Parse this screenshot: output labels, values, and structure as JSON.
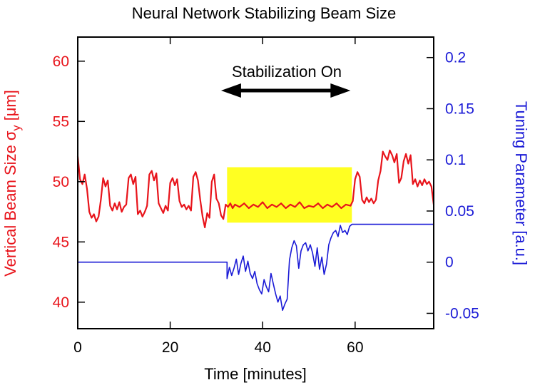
{
  "chart_data": {
    "type": "line",
    "title": "Neural Network Stabilizing Beam Size",
    "xlabel": "Time [minutes]",
    "ylabel_left": "Vertical Beam Size σ",
    "ylabel_left_sub": "y",
    "ylabel_left_unit": " [μm]",
    "ylabel_right": "Tuning Parameter [a.u.]",
    "xlim": [
      0,
      77
    ],
    "ylim_left": [
      37.8,
      62
    ],
    "ylim_right": [
      -0.065,
      0.22
    ],
    "x_ticks": [
      0,
      20,
      40,
      60
    ],
    "x_tick_labels": [
      "0",
      "20",
      "40",
      "60"
    ],
    "y_left_ticks": [
      40,
      45,
      50,
      55,
      60
    ],
    "y_left_tick_labels": [
      "40",
      "45",
      "50",
      "55",
      "60"
    ],
    "y_right_ticks": [
      -0.05,
      0,
      0.05,
      0.1,
      0.15,
      0.2
    ],
    "y_right_tick_labels": [
      "-0.05",
      "0",
      "0.05",
      "0.1",
      "0.15",
      "0.2"
    ],
    "grid": false,
    "colors": {
      "left_axis": "#e8141b",
      "right_axis": "#1a1ad6",
      "highlight": "#ffff22"
    },
    "annotation": {
      "text": "Stabilization On",
      "x_start": 31,
      "x_end": 59
    },
    "highlight_region": {
      "x": [
        32.3,
        59.3
      ],
      "y_left": [
        46.6,
        51.2
      ]
    },
    "series": [
      {
        "name": "Vertical Beam Size",
        "axis": "left",
        "color": "#e8141b",
        "x": [
          0,
          0.5,
          1,
          1.5,
          2,
          2.5,
          3,
          3.5,
          4,
          4.5,
          5,
          5.5,
          6,
          6.5,
          7,
          7.5,
          8,
          8.5,
          9,
          9.5,
          10,
          10.5,
          11,
          11.5,
          12,
          12.5,
          13,
          13.5,
          14,
          14.5,
          15,
          15.5,
          16,
          16.5,
          17,
          17.5,
          18,
          18.5,
          19,
          19.5,
          20,
          20.5,
          21,
          21.5,
          22,
          22.5,
          23,
          23.5,
          24,
          24.5,
          25,
          25.5,
          26,
          26.5,
          27,
          27.5,
          28,
          28.5,
          29,
          29.5,
          30,
          30.5,
          31,
          31.5,
          32,
          32.5,
          33,
          33.5,
          34,
          35,
          36,
          37,
          38,
          39,
          40,
          41,
          42,
          43,
          44,
          45,
          46,
          47,
          48,
          49,
          50,
          51,
          52,
          53,
          54,
          55,
          56,
          57,
          58,
          59,
          59.5,
          60,
          60.5,
          61,
          61.5,
          62,
          62.5,
          63,
          63.5,
          64,
          64.5,
          65,
          65.5,
          66,
          66.5,
          67,
          67.5,
          68,
          68.5,
          69,
          69.5,
          70,
          70.5,
          71,
          71.5,
          72,
          72.5,
          73,
          73.5,
          74,
          74.5,
          75,
          75.5,
          76,
          76.5,
          77
        ],
        "y": [
          52.1,
          50.2,
          49.8,
          50.6,
          49.4,
          47.5,
          47.0,
          47.3,
          46.7,
          47.1,
          48.5,
          50.3,
          49.6,
          50.1,
          48.0,
          47.6,
          48.2,
          47.7,
          48.3,
          47.5,
          47.9,
          48.1,
          50.3,
          50.6,
          49.8,
          50.4,
          47.3,
          47.6,
          47.1,
          47.5,
          48.0,
          50.6,
          50.9,
          50.1,
          50.7,
          48.2,
          47.8,
          47.4,
          48.0,
          47.6,
          49.9,
          50.3,
          49.7,
          50.2,
          48.4,
          47.9,
          48.1,
          47.7,
          48.0,
          47.6,
          50.4,
          50.8,
          50.1,
          48.5,
          47.1,
          46.2,
          47.4,
          47.0,
          50.0,
          50.6,
          48.6,
          48.2,
          47.2,
          46.9,
          48.1,
          47.9,
          48.2,
          47.8,
          48.1,
          47.9,
          48.2,
          47.8,
          48.1,
          47.9,
          48.3,
          47.8,
          48.1,
          47.9,
          48.2,
          47.8,
          48.1,
          47.9,
          48.3,
          47.8,
          48.0,
          47.9,
          48.2,
          47.8,
          48.1,
          47.9,
          48.2,
          47.8,
          48.1,
          48.0,
          48.4,
          50.2,
          50.8,
          50.4,
          48.5,
          48.2,
          48.7,
          48.3,
          48.6,
          48.2,
          48.5,
          50.1,
          50.9,
          52.5,
          52.1,
          51.8,
          52.6,
          52.2,
          51.6,
          52.3,
          49.9,
          50.3,
          51.7,
          52.3,
          51.5,
          52.2,
          49.8,
          50.2,
          49.6,
          50.1,
          49.7,
          50.2,
          49.8,
          50.0,
          49.6,
          48.1
        ]
      },
      {
        "name": "Tuning Parameter",
        "axis": "right",
        "color": "#1a1ad6",
        "x": [
          0,
          32.3,
          32.3,
          32.8,
          33.3,
          33.8,
          34.3,
          34.8,
          35.3,
          35.8,
          36.3,
          36.8,
          37.3,
          37.8,
          38.3,
          38.8,
          39.3,
          39.8,
          40.3,
          40.8,
          41.3,
          41.8,
          42.3,
          42.8,
          43.3,
          43.8,
          44.3,
          44.8,
          45.3,
          45.8,
          46.3,
          46.8,
          47.3,
          47.8,
          48.3,
          48.8,
          49.3,
          49.8,
          50.3,
          50.8,
          51.3,
          51.8,
          52.3,
          52.8,
          53.3,
          53.8,
          54.3,
          54.8,
          55.3,
          55.8,
          56.3,
          56.8,
          57.3,
          57.8,
          58.3,
          58.8,
          59.3,
          59.3,
          77
        ],
        "y": [
          0,
          0,
          -0.016,
          -0.005,
          -0.013,
          -0.006,
          0.003,
          -0.012,
          -0.001,
          0.006,
          -0.009,
          0.001,
          -0.011,
          -0.016,
          -0.009,
          -0.021,
          -0.027,
          -0.031,
          -0.017,
          -0.024,
          -0.029,
          -0.011,
          -0.021,
          -0.031,
          -0.039,
          -0.033,
          -0.047,
          -0.041,
          -0.036,
          0.002,
          0.014,
          0.021,
          0.016,
          -0.006,
          0.011,
          0.017,
          0.019,
          0.011,
          0.017,
          0.009,
          -0.004,
          0.014,
          -0.007,
          0.005,
          -0.012,
          -0.002,
          0.017,
          0.024,
          0.029,
          0.031,
          0.025,
          0.036,
          0.029,
          0.031,
          0.027,
          0.035,
          0.037,
          0.037,
          0.037
        ]
      }
    ]
  }
}
